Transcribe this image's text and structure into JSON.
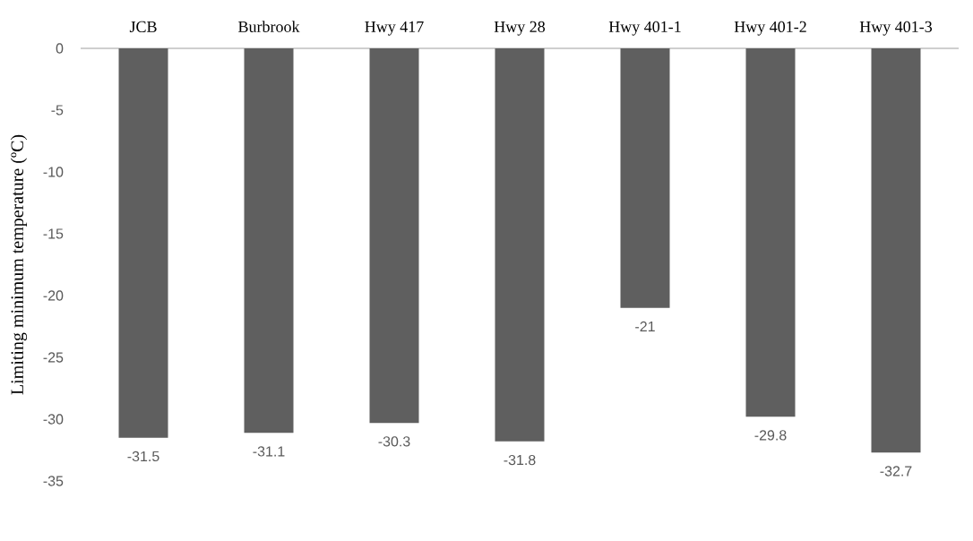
{
  "chart_data": {
    "type": "bar",
    "ylabel": "Limiting minimum temperature (ºC)",
    "categories": [
      "JCB",
      "Burbrook",
      "Hwy 417",
      "Hwy 28",
      "Hwy 401-1",
      "Hwy 401-2",
      "Hwy 401-3"
    ],
    "values": [
      -31.5,
      -31.1,
      -30.3,
      -31.8,
      -21,
      -29.8,
      -32.7
    ],
    "value_labels": [
      "-31.5",
      "-31.1",
      "-30.3",
      "-31.8",
      "-21",
      "-29.8",
      "-32.7"
    ],
    "color": "#5f5f5f",
    "ylim": [
      -35,
      0
    ],
    "yticks": [
      0,
      -5,
      -10,
      -15,
      -20,
      -25,
      -30,
      -35
    ]
  }
}
